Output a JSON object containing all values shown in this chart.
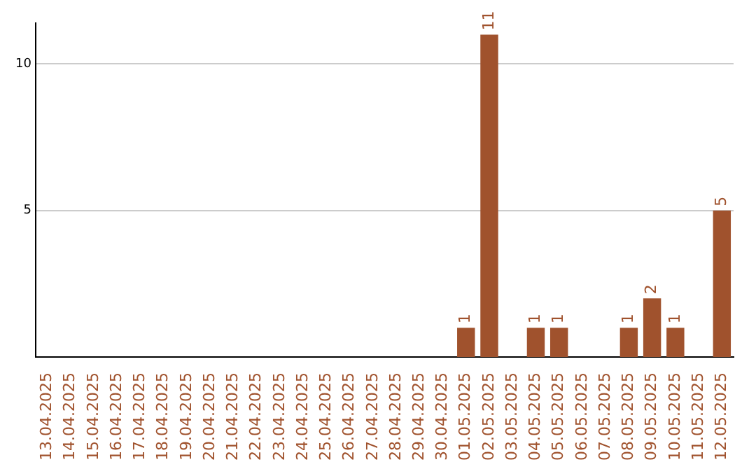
{
  "chart_data": {
    "type": "bar",
    "categories": [
      "13.04.2025",
      "14.04.2025",
      "15.04.2025",
      "16.04.2025",
      "17.04.2025",
      "18.04.2025",
      "19.04.2025",
      "20.04.2025",
      "21.04.2025",
      "22.04.2025",
      "23.04.2025",
      "24.04.2025",
      "25.04.2025",
      "26.04.2025",
      "27.04.2025",
      "28.04.2025",
      "29.04.2025",
      "30.04.2025",
      "01.05.2025",
      "02.05.2025",
      "03.05.2025",
      "04.05.2025",
      "05.05.2025",
      "06.05.2025",
      "07.05.2025",
      "08.05.2025",
      "09.05.2025",
      "10.05.2025",
      "11.05.2025",
      "12.05.2025"
    ],
    "values": [
      0,
      0,
      0,
      0,
      0,
      0,
      0,
      0,
      0,
      0,
      0,
      0,
      0,
      0,
      0,
      0,
      0,
      0,
      1,
      11,
      0,
      1,
      1,
      0,
      0,
      1,
      2,
      1,
      0,
      5
    ],
    "value_labels": [
      null,
      null,
      null,
      null,
      null,
      null,
      null,
      null,
      null,
      null,
      null,
      null,
      null,
      null,
      null,
      null,
      null,
      null,
      "1",
      "11",
      null,
      "1",
      "1",
      null,
      null,
      "1",
      "2",
      "1",
      null,
      "5"
    ],
    "color": "#a0522d",
    "ylim": [
      0,
      11.4
    ],
    "yticks": [
      5,
      10
    ],
    "grid": "y"
  }
}
